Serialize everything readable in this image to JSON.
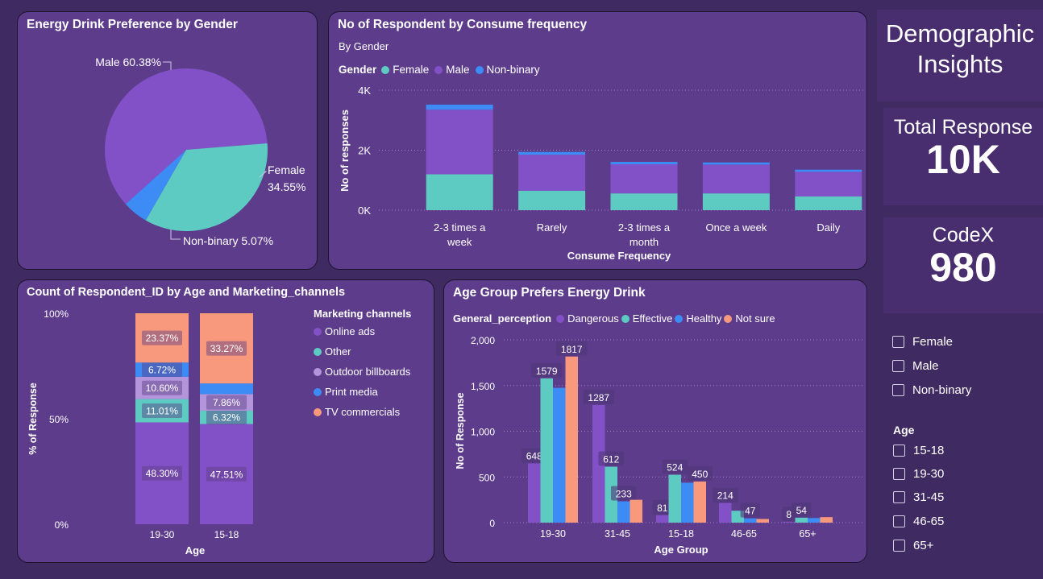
{
  "colors": {
    "female": "#5ecbc3",
    "male": "#8351c7",
    "nonbinary": "#3d8bf5",
    "dangerous": "#8351c7",
    "effective": "#5ecbc3",
    "healthy": "#3d8bf5",
    "not_sure": "#f8987c",
    "online_ads": "#8351c7",
    "other": "#5ecbc3",
    "outdoor": "#b395dc",
    "print": "#3d8bf5",
    "tv": "#f8987c"
  },
  "header": {
    "title_line1": "Demographic",
    "title_line2": "Insights"
  },
  "kpis": {
    "total_label": "Total Response",
    "total_value": "10K",
    "codex_label": "CodeX",
    "codex_value": "980"
  },
  "slicers": {
    "gender_options": [
      "Female",
      "Male",
      "Non-binary"
    ],
    "age_label": "Age",
    "age_options": [
      "15-18",
      "19-30",
      "31-45",
      "46-65",
      "65+"
    ]
  },
  "chart_data": [
    {
      "id": "pie",
      "type": "pie",
      "title": "Energy Drink Preference by Gender",
      "slices": [
        {
          "name": "Male",
          "value": 60.38,
          "label": "Male 60.38%"
        },
        {
          "name": "Female",
          "value": 34.55,
          "label_line1": "Female",
          "label_line2": "34.55%"
        },
        {
          "name": "Non-binary",
          "value": 5.07,
          "label": "Non-binary 5.07%"
        }
      ]
    },
    {
      "id": "freq",
      "type": "bar",
      "stacked": true,
      "title": "No of Respondent by Consume frequency",
      "subtitle": "By Gender",
      "legend_title": "Gender",
      "xlabel": "Consume Frequency",
      "ylabel": "No of responses",
      "yticks": [
        "0K",
        "2K",
        "4K"
      ],
      "ylim": [
        0,
        4000
      ],
      "categories": [
        [
          "2-3 times a",
          "week"
        ],
        [
          "Rarely"
        ],
        [
          "2-3 times a",
          "month"
        ],
        [
          "Once a week"
        ],
        [
          "Daily"
        ]
      ],
      "series": [
        {
          "name": "Female",
          "values": [
            1200,
            650,
            560,
            560,
            460
          ]
        },
        {
          "name": "Male",
          "values": [
            2150,
            1200,
            970,
            960,
            820
          ]
        },
        {
          "name": "Non-binary",
          "values": [
            170,
            90,
            80,
            70,
            70
          ]
        }
      ]
    },
    {
      "id": "marketing",
      "type": "bar",
      "stacked": true,
      "percent": true,
      "title": "Count of Respondent_ID by Age and Marketing_channels",
      "legend_title": "Marketing channels",
      "xlabel": "Age",
      "ylabel": "% of Response",
      "yticks": [
        "0%",
        "50%",
        "100%"
      ],
      "categories": [
        "19-30",
        "15-18"
      ],
      "series": [
        {
          "name": "Online ads",
          "values": [
            48.3,
            47.51
          ],
          "labels": [
            "48.30%",
            "47.51%"
          ]
        },
        {
          "name": "Other",
          "values": [
            11.01,
            6.32
          ],
          "labels": [
            "11.01%",
            "6.32%"
          ]
        },
        {
          "name": "Outdoor billboards",
          "values": [
            10.6,
            7.86
          ],
          "labels": [
            "10.60%",
            "7.86%"
          ]
        },
        {
          "name": "Print media",
          "values": [
            6.72,
            5.04
          ],
          "labels": [
            "6.72%",
            ""
          ]
        },
        {
          "name": "TV commercials",
          "values": [
            23.37,
            33.27
          ],
          "labels": [
            "23.37%",
            "33.27%"
          ]
        }
      ]
    },
    {
      "id": "agegroup",
      "type": "bar",
      "stacked": false,
      "title": "Age Group Prefers Energy Drink",
      "legend_title": "General_perception",
      "xlabel": "Age Group",
      "ylabel": "No of Response",
      "yticks": [
        "0",
        "500",
        "1,000",
        "1,500",
        "2,000"
      ],
      "ylim": [
        0,
        2000
      ],
      "categories": [
        "19-30",
        "31-45",
        "15-18",
        "46-65",
        "65+"
      ],
      "series": [
        {
          "name": "Dangerous",
          "values": [
            648,
            1287,
            81,
            214,
            8
          ],
          "labels": [
            "648",
            "1287",
            "81",
            "214",
            "8"
          ]
        },
        {
          "name": "Effective",
          "values": [
            1579,
            612,
            524,
            130,
            54
          ],
          "labels": [
            "1579",
            "612",
            "524",
            "",
            "54"
          ]
        },
        {
          "name": "Healthy",
          "values": [
            1475,
            233,
            437,
            47,
            50
          ],
          "labels": [
            "",
            "233",
            "",
            "47",
            ""
          ]
        },
        {
          "name": "Not sure",
          "values": [
            1817,
            250,
            450,
            40,
            60
          ],
          "labels": [
            "1817",
            "",
            "450",
            "",
            ""
          ]
        }
      ]
    }
  ]
}
